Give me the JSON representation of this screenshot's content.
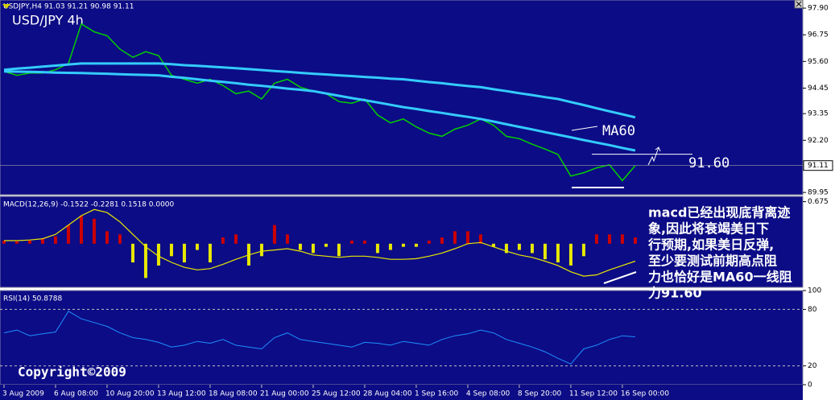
{
  "chart_data": [
    {
      "type": "line",
      "title": "USD/JPY 4h",
      "subtitle": "USDJPY,H4  91.03 91.21 90.98 91.11",
      "x": [
        0,
        1,
        2,
        3,
        4,
        5,
        6,
        7,
        8,
        9,
        10,
        11,
        12,
        13,
        14,
        15,
        16,
        17,
        18,
        19,
        20,
        21,
        22,
        23,
        24,
        25,
        26,
        27,
        28,
        29,
        30,
        31,
        32,
        33,
        34,
        35,
        36,
        37,
        38,
        39,
        40,
        41,
        42,
        43,
        44,
        45,
        46,
        47,
        48,
        49
      ],
      "xlim": [
        -0.31,
        61.88
      ],
      "xticks": [
        {
          "value": 0,
          "label": "3 Aug 2009"
        },
        {
          "value": 4,
          "label": "6 Aug 08:00"
        },
        {
          "value": 8,
          "label": "10 Aug 20:00"
        },
        {
          "value": 12,
          "label": "13 Aug 12:00"
        },
        {
          "value": 16,
          "label": "18 Aug 08:00"
        },
        {
          "value": 20,
          "label": "21 Aug 00:00"
        },
        {
          "value": 24,
          "label": "25 Aug 12:00"
        },
        {
          "value": 28,
          "label": "28 Aug 04:00"
        },
        {
          "value": 32,
          "label": "1 Sep 16:00"
        },
        {
          "value": 36,
          "label": "4 Sep 08:00"
        },
        {
          "value": 40,
          "label": "8 Sep 20:00"
        },
        {
          "value": 44,
          "label": "11 Sep 12:00"
        },
        {
          "value": 48,
          "label": "16 Sep 00:00"
        }
      ],
      "ylim": [
        89.85,
        98.25
      ],
      "yticks": [
        {
          "value": 89.95,
          "label": "89.95"
        },
        {
          "value": 92.2,
          "label": "92.20"
        },
        {
          "value": 93.35,
          "label": "93.35"
        },
        {
          "value": 94.45,
          "label": "94.45"
        },
        {
          "value": 95.6,
          "label": "95.60"
        },
        {
          "value": 96.75,
          "label": "96.75"
        },
        {
          "value": 97.9,
          "label": "97.90"
        }
      ],
      "last_price": {
        "value": 91.11,
        "label": "91.11"
      },
      "series": [
        {
          "color": "#00d000",
          "values": [
            95.17,
            95.0,
            95.1,
            95.1,
            95.24,
            95.51,
            97.22,
            96.88,
            96.71,
            96.13,
            95.78,
            96.02,
            95.85,
            95.0,
            94.83,
            94.66,
            94.83,
            94.56,
            94.21,
            94.32,
            93.98,
            94.66,
            94.83,
            94.49,
            94.32,
            94.21,
            93.87,
            93.8,
            93.98,
            93.29,
            92.95,
            93.12,
            92.78,
            92.51,
            92.37,
            92.68,
            92.85,
            93.12,
            92.85,
            92.37,
            92.27,
            92.03,
            91.82,
            91.59,
            90.66,
            90.8,
            91.01,
            91.14,
            90.46,
            91.11
          ]
        },
        {
          "color": "#33ccff",
          "values": [
            95.24,
            95.29,
            95.33,
            95.38,
            95.42,
            95.47,
            95.51,
            95.51,
            95.51,
            95.51,
            95.51,
            95.51,
            95.51,
            95.48,
            95.44,
            95.41,
            95.38,
            95.34,
            95.31,
            95.27,
            95.23,
            95.19,
            95.15,
            95.11,
            95.07,
            95.04,
            95.0,
            94.97,
            94.93,
            94.9,
            94.86,
            94.83,
            94.77,
            94.71,
            94.66,
            94.6,
            94.54,
            94.49,
            94.4,
            94.32,
            94.23,
            94.15,
            94.06,
            93.98,
            93.85,
            93.72,
            93.58,
            93.45,
            93.32,
            93.19
          ]
        },
        {
          "color": "#33ccff",
          "values": [
            95.17,
            95.16,
            95.15,
            95.14,
            95.12,
            95.11,
            95.1,
            95.08,
            95.07,
            95.05,
            95.03,
            95.02,
            95.0,
            94.94,
            94.89,
            94.83,
            94.77,
            94.72,
            94.66,
            94.6,
            94.55,
            94.49,
            94.43,
            94.38,
            94.32,
            94.22,
            94.12,
            94.02,
            93.93,
            93.83,
            93.73,
            93.63,
            93.55,
            93.46,
            93.38,
            93.29,
            93.21,
            93.12,
            93.01,
            92.89,
            92.78,
            92.67,
            92.55,
            92.44,
            92.33,
            92.21,
            92.1,
            91.99,
            91.87,
            91.76
          ]
        }
      ],
      "ma_label": "MA60",
      "level": {
        "value": 91.6,
        "label": "91.60"
      },
      "note": [
        "macd已经出现底背离迹",
        "象,因此将衰竭美日下",
        "行预期,如果美日反弹,",
        "至少要测试前期高点阻",
        "力也恰好是MA60一线阻",
        "力91.60"
      ]
    },
    {
      "type": "bar",
      "title": "MACD(12,26,9) -0.1522 -0.2281 0.1518 0.0000",
      "values": [
        0.05,
        0.04,
        0.05,
        0.08,
        0.12,
        0.3,
        0.45,
        0.4,
        0.2,
        0.15,
        -0.3,
        -0.55,
        -0.35,
        -0.2,
        -0.3,
        -0.1,
        -0.3,
        0.1,
        0.15,
        -0.35,
        -0.2,
        0.3,
        0.15,
        -0.1,
        -0.15,
        -0.05,
        -0.2,
        0.05,
        0.05,
        -0.15,
        -0.1,
        -0.05,
        -0.05,
        0.05,
        0.1,
        0.2,
        0.2,
        0.15,
        -0.05,
        -0.15,
        -0.1,
        -0.15,
        -0.25,
        -0.3,
        -0.35,
        -0.2,
        0.15,
        0.15,
        0.15,
        0.1
      ],
      "positive_color": "#cc0000",
      "negative_color": "#e8e800",
      "signal": {
        "color": "#e8e800",
        "values": [
          0.05,
          0.05,
          0.06,
          0.08,
          0.15,
          0.3,
          0.45,
          0.55,
          0.5,
          0.35,
          0.15,
          -0.05,
          -0.2,
          -0.3,
          -0.38,
          -0.42,
          -0.4,
          -0.33,
          -0.25,
          -0.18,
          -0.12,
          -0.1,
          -0.08,
          -0.12,
          -0.18,
          -0.2,
          -0.22,
          -0.2,
          -0.2,
          -0.22,
          -0.25,
          -0.25,
          -0.24,
          -0.2,
          -0.15,
          -0.08,
          0.0,
          0.02,
          -0.05,
          -0.12,
          -0.18,
          -0.22,
          -0.28,
          -0.35,
          -0.45,
          -0.52,
          -0.5,
          -0.42,
          -0.35,
          -0.28
        ]
      },
      "ylim": [
        -0.7,
        0.76
      ],
      "yticks": [
        0.675
      ]
    },
    {
      "type": "line",
      "title": "RSI(14) 50.8788",
      "color": "#1e90ff",
      "values": [
        55,
        58,
        52,
        54,
        56,
        78,
        70,
        66,
        62,
        55,
        50,
        48,
        45,
        40,
        42,
        46,
        44,
        48,
        42,
        40,
        38,
        50,
        55,
        48,
        46,
        44,
        42,
        40,
        45,
        44,
        42,
        46,
        44,
        42,
        48,
        52,
        54,
        58,
        55,
        48,
        44,
        40,
        35,
        28,
        22,
        38,
        42,
        48,
        52,
        50.88
      ],
      "ylim": [
        0,
        100
      ],
      "yticks": [
        0,
        20,
        80,
        100
      ],
      "levels": [
        20,
        80
      ]
    }
  ],
  "copyright": "Copyright©2009"
}
